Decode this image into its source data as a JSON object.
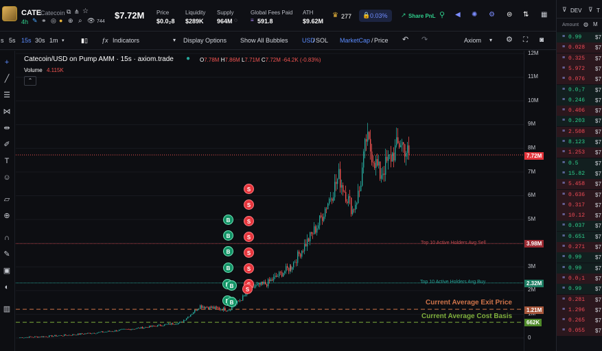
{
  "header": {
    "ticker": "CATE",
    "name": "Catecoin",
    "age": "4h",
    "views": "744",
    "market_cap": "$7.72M",
    "stats": [
      {
        "label": "Price",
        "value": "$0.0₂8"
      },
      {
        "label": "Liquidity",
        "value": "$289K"
      },
      {
        "label": "Supply",
        "value": "964M"
      },
      {
        "label": "Global Fees Paid",
        "value": "591.8"
      },
      {
        "label": "ATH",
        "value": "$9.62M"
      }
    ],
    "holders_count": "277",
    "pct": "0.03%",
    "share_label": "Share PnL"
  },
  "toolbar": {
    "timeframes": [
      "s",
      "5s",
      "15s",
      "30s",
      "1m"
    ],
    "active_timeframe": "15s",
    "indicators": "Indicators",
    "display_options": "Display Options",
    "show_bubbles": "Show All Bubbles",
    "currency_a": "USD",
    "currency_b": "SOL",
    "mode_a": "MarketCap",
    "mode_b": "Price",
    "layout": "Axiom"
  },
  "chart": {
    "title": "Catecoin/USD on Pump AMM · 15s · axiom.trade",
    "ohlc": {
      "o_label": "O",
      "o": "7.78M",
      "h_label": "H",
      "h": "7.86M",
      "l_label": "L",
      "l": "7.71M",
      "c_label": "C",
      "c": "7.72M",
      "change": "-64.2K (-0.83%)"
    },
    "volume_label": "Volume",
    "volume_value": "4.115K",
    "lines": {
      "avg_sell": "Top 10 Active Holders Avg Sell",
      "avg_buy": "Top 10 Active Holders Avg Buy",
      "exit": "Current Average Exit Price",
      "cost": "Current Average Cost Basis"
    },
    "tags": {
      "price": "7.72M",
      "sell": "3.98M",
      "buy": "2.32M",
      "exit": "1.21M",
      "cost": "662K"
    },
    "y_ticks": [
      "12M",
      "11M",
      "10M",
      "9M",
      "8M",
      "7M",
      "6M",
      "5M",
      "4M",
      "3M",
      "2M",
      "1M",
      "0"
    ],
    "colors": {
      "up": "#26a69a",
      "down": "#ef5350",
      "sell": "#e5353c",
      "buy": "#149366",
      "exit": "#d0744a",
      "cost": "#7fb03c"
    }
  },
  "chart_data": {
    "type": "candlestick",
    "x_unit": "15s candles",
    "ylim": [
      0,
      12000000
    ],
    "series": [
      {
        "name": "MarketCap",
        "y": [
          20000,
          60000,
          130000,
          260000,
          420000,
          650000,
          1350000,
          1250000,
          1200000,
          1700000,
          2150000,
          2300000,
          3000000,
          4800000,
          6800000,
          5400000,
          6200000,
          8400000,
          6900000,
          8300000,
          7720000
        ]
      }
    ]
  },
  "sidebar": {
    "tab_dev": "DEV",
    "tab_tp": "T",
    "col_amount": "Amount",
    "amounts": [
      {
        "v": "0.99",
        "c": "#2fcf8c"
      },
      {
        "v": "0.028",
        "c": "#ef4a55"
      },
      {
        "v": "0.325",
        "c": "#ef4a55"
      },
      {
        "v": "5.972",
        "c": "#ef4a55"
      },
      {
        "v": "0.076",
        "c": "#ef4a55"
      },
      {
        "v": "0.0₂7",
        "c": "#2fcf8c"
      },
      {
        "v": "0.246",
        "c": "#2fcf8c"
      },
      {
        "v": "0.406",
        "c": "#ef4a55"
      },
      {
        "v": "0.203",
        "c": "#2fcf8c"
      },
      {
        "v": "2.508",
        "c": "#ef4a55"
      },
      {
        "v": "8.123",
        "c": "#2fcf8c"
      },
      {
        "v": "1.253",
        "c": "#ef4a55"
      },
      {
        "v": "0.5",
        "c": "#2fcf8c"
      },
      {
        "v": "15.82",
        "c": "#2fcf8c"
      },
      {
        "v": "5.458",
        "c": "#ef4a55"
      },
      {
        "v": "0.636",
        "c": "#ef4a55"
      },
      {
        "v": "0.317",
        "c": "#ef4a55"
      },
      {
        "v": "10.12",
        "c": "#ef4a55"
      },
      {
        "v": "0.037",
        "c": "#2fcf8c"
      },
      {
        "v": "0.651",
        "c": "#2fcf8c"
      },
      {
        "v": "0.271",
        "c": "#ef4a55"
      },
      {
        "v": "0.99",
        "c": "#2fcf8c"
      },
      {
        "v": "0.99",
        "c": "#2fcf8c"
      },
      {
        "v": "0.0₂1",
        "c": "#ef4a55"
      },
      {
        "v": "0.99",
        "c": "#2fcf8c"
      },
      {
        "v": "0.281",
        "c": "#ef4a55"
      },
      {
        "v": "1.296",
        "c": "#ef4a55"
      },
      {
        "v": "0.265",
        "c": "#ef4a55"
      },
      {
        "v": "0.055",
        "c": "#ef4a55"
      }
    ],
    "col2_prefix": "$7"
  },
  "bubbles": {
    "sell": "S",
    "buy": "B"
  }
}
